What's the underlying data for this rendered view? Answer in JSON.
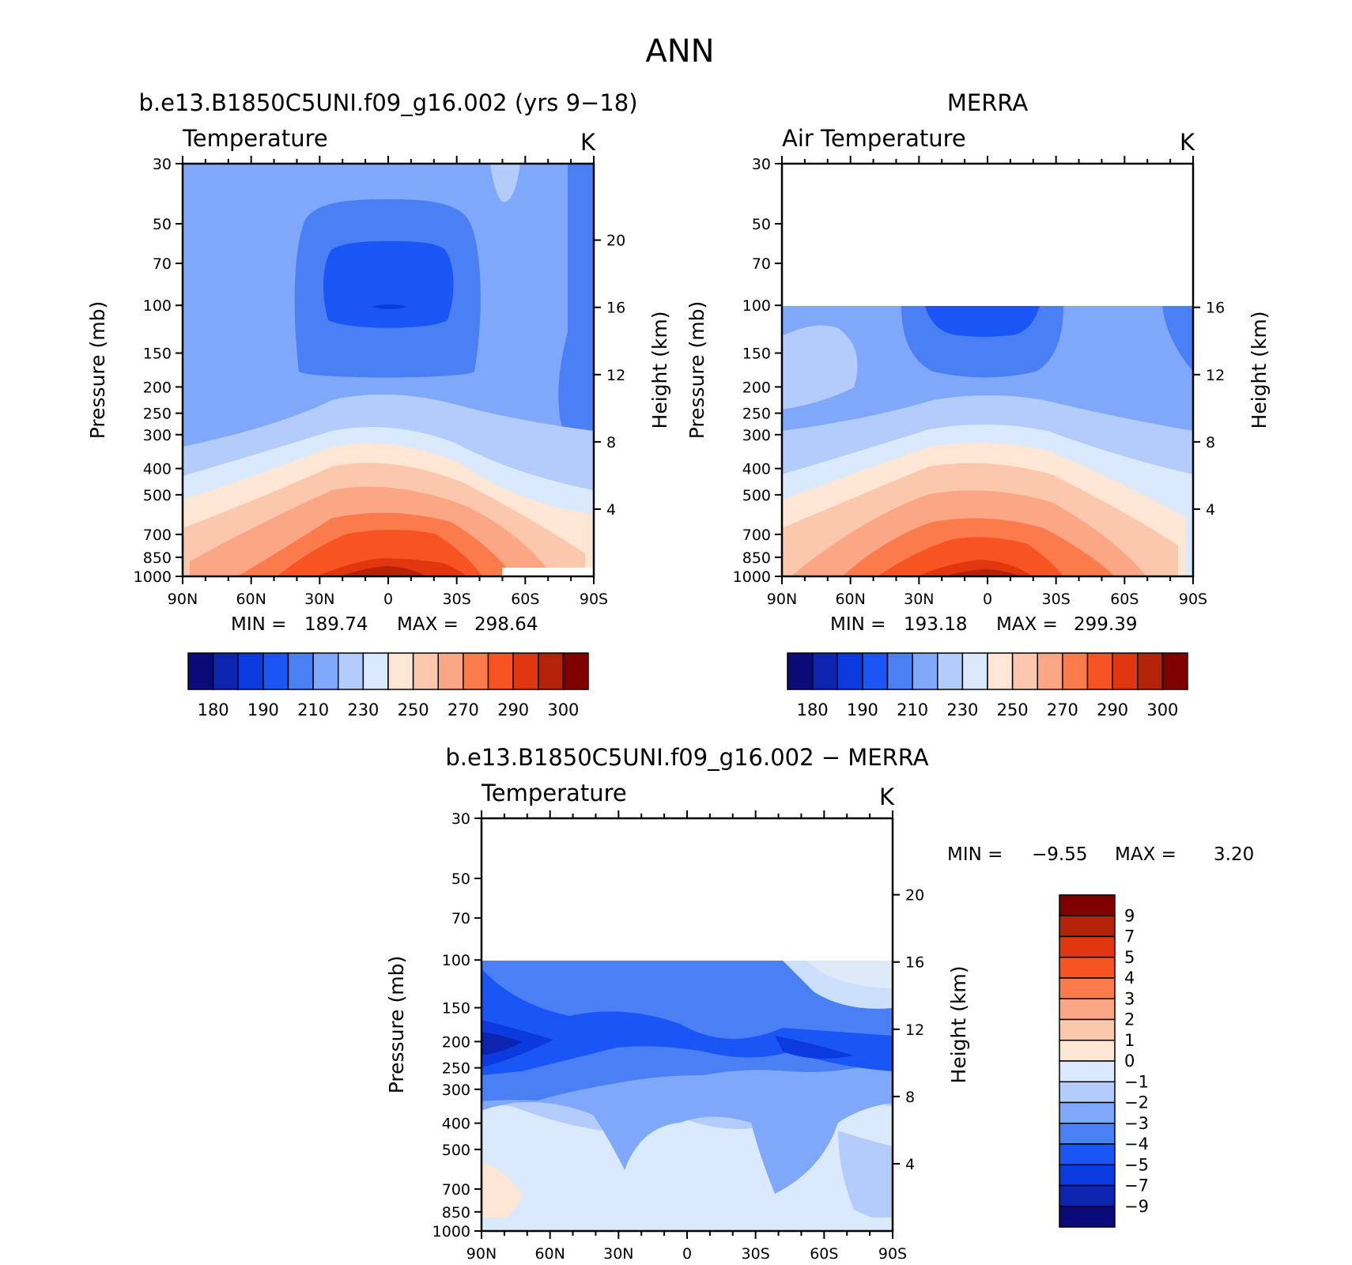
{
  "figure_title": "ANN",
  "panels": [
    {
      "case_title": "b.e13.B1850C5UNI.f09_g16.002 (yrs 9−18)",
      "variable": "Temperature",
      "units": "K",
      "ylabel": "Pressure (mb)",
      "y2label": "Height (km)",
      "min_label": "MIN =",
      "min_value": "189.74",
      "max_label": "MAX =",
      "max_value": "298.64"
    },
    {
      "case_title": "MERRA",
      "variable": "Air Temperature",
      "units": "K",
      "ylabel": "Pressure (mb)",
      "y2label": "Height (km)",
      "min_label": "MIN =",
      "min_value": "193.18",
      "max_label": "MAX =",
      "max_value": "299.39"
    },
    {
      "case_title": "b.e13.B1850C5UNI.f09_g16.002 − MERRA",
      "variable": "Temperature",
      "units": "K",
      "ylabel": "Pressure (mb)",
      "y2label": "Height (km)",
      "min_label": "MIN =",
      "min_value": "−9.55",
      "max_label": "MAX =",
      "max_value": "3.20"
    }
  ],
  "colorbars": {
    "abs_labels": [
      "180",
      "190",
      "210",
      "230",
      "250",
      "270",
      "290",
      "300"
    ],
    "diff_labels": [
      "9",
      "7",
      "5",
      "4",
      "3",
      "2",
      "1",
      "0",
      "−1",
      "−2",
      "−3",
      "−4",
      "−5",
      "−7",
      "−9"
    ],
    "abs_colors": [
      "#0a0a78",
      "#0c24b0",
      "#0b3ae0",
      "#1a56f5",
      "#4b80f5",
      "#80a8fa",
      "#b4ccfb",
      "#daeafc",
      "#fde6d3",
      "#fcc8ad",
      "#fba786",
      "#fb7b4c",
      "#f85322",
      "#e23610",
      "#b42208",
      "#800000"
    ],
    "diff_colors": [
      "#800000",
      "#b42208",
      "#e23610",
      "#f85322",
      "#fb7b4c",
      "#fba786",
      "#fcc8ad",
      "#fde6d3",
      "#daeafc",
      "#b4ccfb",
      "#80a8fa",
      "#4b80f5",
      "#1a56f5",
      "#0b3ae0",
      "#0c24b0",
      "#0a0a78"
    ]
  },
  "chart_data": [
    {
      "type": "heatmap",
      "title": "b.e13.B1850C5UNI.f09_g16.002 (yrs 9−18)",
      "subtitle": "Temperature",
      "units": "K",
      "xlabel": "",
      "ylabel": "Pressure (mb)",
      "y2label": "Height (km)",
      "x_ticks": [
        "90N",
        "60N",
        "30N",
        "0",
        "30S",
        "60S",
        "90S"
      ],
      "y_ticks": [
        30,
        50,
        70,
        100,
        150,
        200,
        250,
        300,
        400,
        500,
        700,
        850,
        1000
      ],
      "y_scale": "log",
      "y_reversed": true,
      "ylim": [
        30,
        1000
      ],
      "y2_ticks": [
        4,
        8,
        12,
        16,
        20
      ],
      "levels": [
        180,
        185,
        190,
        200,
        210,
        220,
        230,
        240,
        250,
        260,
        270,
        280,
        290,
        295,
        300
      ],
      "min": 189.74,
      "max": 298.64
    },
    {
      "type": "heatmap",
      "title": "MERRA",
      "subtitle": "Air Temperature",
      "units": "K",
      "xlabel": "",
      "ylabel": "Pressure (mb)",
      "y2label": "Height (km)",
      "x_ticks": [
        "90N",
        "60N",
        "30N",
        "0",
        "30S",
        "60S",
        "90S"
      ],
      "y_ticks": [
        30,
        50,
        70,
        100,
        150,
        200,
        250,
        300,
        400,
        500,
        700,
        850,
        1000
      ],
      "y_scale": "log",
      "y_reversed": true,
      "ylim": [
        30,
        1000
      ],
      "y2_ticks": [
        4,
        8,
        12,
        16
      ],
      "levels": [
        180,
        185,
        190,
        200,
        210,
        220,
        230,
        240,
        250,
        260,
        270,
        280,
        290,
        295,
        300
      ],
      "min": 193.18,
      "max": 299.39
    },
    {
      "type": "heatmap",
      "title": "b.e13.B1850C5UNI.f09_g16.002 − MERRA",
      "subtitle": "Temperature",
      "units": "K",
      "xlabel": "",
      "ylabel": "Pressure (mb)",
      "y2label": "Height (km)",
      "x_ticks": [
        "90N",
        "60N",
        "30N",
        "0",
        "30S",
        "60S",
        "90S"
      ],
      "y_ticks": [
        30,
        50,
        70,
        100,
        150,
        200,
        250,
        300,
        400,
        500,
        700,
        850,
        1000
      ],
      "y_scale": "log",
      "y_reversed": true,
      "ylim": [
        30,
        1000
      ],
      "y2_ticks": [
        4,
        8,
        12,
        16,
        20
      ],
      "levels": [
        -9,
        -7,
        -5,
        -4,
        -3,
        -2,
        -1,
        0,
        1,
        2,
        3,
        4,
        5,
        7,
        9
      ],
      "min": -9.55,
      "max": 3.2
    }
  ]
}
